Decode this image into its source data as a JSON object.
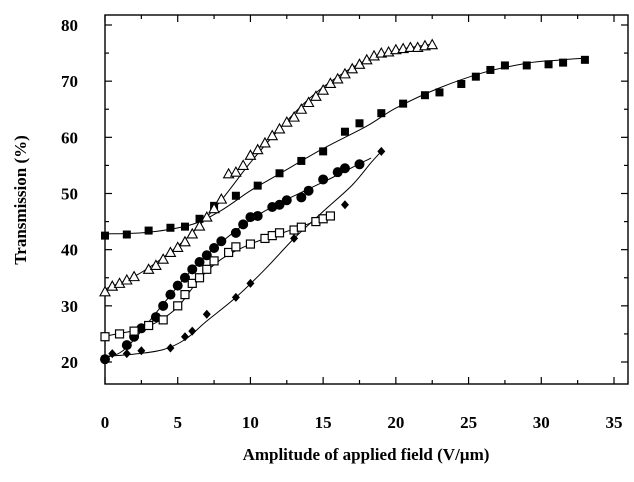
{
  "chart_data": {
    "type": "scatter",
    "title": "",
    "xlabel": "Amplitude of applied field (V/µm)",
    "ylabel": "Transmission (%)",
    "xlim": [
      0,
      35
    ],
    "ylim": [
      15,
      82
    ],
    "xticks": [
      "0",
      "5",
      "10",
      "15",
      "20",
      "25",
      "30",
      "35"
    ],
    "yticks": [
      "20",
      "30",
      "40",
      "50",
      "60",
      "70",
      "80"
    ],
    "grid": false,
    "legend": "none",
    "series": [
      {
        "marker": "filled-square",
        "color": "#000000",
        "points": [
          [
            0.0,
            42.5
          ],
          [
            1.5,
            42.7
          ],
          [
            3.0,
            43.4
          ],
          [
            4.5,
            43.9
          ],
          [
            5.5,
            44.1
          ],
          [
            6.5,
            45.5
          ],
          [
            7.5,
            47.8
          ],
          [
            9.0,
            49.6
          ],
          [
            10.5,
            51.4
          ],
          [
            12.0,
            53.6
          ],
          [
            13.5,
            55.8
          ],
          [
            15.0,
            57.5
          ],
          [
            16.5,
            61.0
          ],
          [
            17.5,
            62.5
          ],
          [
            19.0,
            64.3
          ],
          [
            20.5,
            66.0
          ],
          [
            22.0,
            67.5
          ],
          [
            23.0,
            68.0
          ],
          [
            24.5,
            69.5
          ],
          [
            25.5,
            70.8
          ],
          [
            26.5,
            72.0
          ],
          [
            27.5,
            72.8
          ],
          [
            29.0,
            72.8
          ],
          [
            30.5,
            73.0
          ],
          [
            31.5,
            73.3
          ],
          [
            33.0,
            73.8
          ]
        ],
        "fit": [
          [
            0,
            42.8
          ],
          [
            3,
            43.1
          ],
          [
            6,
            44.5
          ],
          [
            8,
            47
          ],
          [
            10,
            50.5
          ],
          [
            12,
            53.5
          ],
          [
            15,
            58
          ],
          [
            18,
            62
          ],
          [
            20,
            65.2
          ],
          [
            23,
            68.8
          ],
          [
            26,
            71.5
          ],
          [
            29,
            73.2
          ],
          [
            31,
            73.7
          ],
          [
            33,
            74.1
          ]
        ]
      },
      {
        "marker": "open-triangle",
        "color": "#000000",
        "points": [
          [
            0.0,
            32.5
          ],
          [
            0.5,
            33.5
          ],
          [
            1.0,
            34.0
          ],
          [
            1.5,
            34.6
          ],
          [
            2.0,
            35.2
          ],
          [
            3.0,
            36.5
          ],
          [
            3.5,
            37.2
          ],
          [
            4.0,
            38.3
          ],
          [
            4.5,
            39.5
          ],
          [
            5.0,
            40.4
          ],
          [
            5.5,
            41.4
          ],
          [
            6.0,
            42.8
          ],
          [
            6.5,
            44.2
          ],
          [
            7.0,
            45.8
          ],
          [
            7.5,
            47.3
          ],
          [
            8.0,
            49.0
          ],
          [
            8.5,
            53.5
          ],
          [
            9.0,
            53.8
          ],
          [
            9.5,
            55.0
          ],
          [
            10.0,
            56.8
          ],
          [
            10.5,
            57.8
          ],
          [
            11.0,
            59.0
          ],
          [
            11.5,
            60.3
          ],
          [
            12.0,
            61.5
          ],
          [
            12.5,
            62.7
          ],
          [
            13.0,
            63.6
          ],
          [
            13.5,
            65.0
          ],
          [
            14.0,
            66.2
          ],
          [
            14.5,
            67.3
          ],
          [
            15.0,
            68.4
          ],
          [
            15.5,
            69.6
          ],
          [
            16.0,
            70.4
          ],
          [
            16.5,
            71.3
          ],
          [
            17.0,
            72.2
          ],
          [
            17.5,
            73.0
          ],
          [
            18.0,
            73.8
          ],
          [
            18.5,
            74.5
          ],
          [
            19.0,
            75.0
          ],
          [
            19.5,
            75.2
          ],
          [
            20.0,
            75.6
          ],
          [
            20.5,
            75.8
          ],
          [
            21.0,
            76.0
          ],
          [
            21.5,
            76.0
          ],
          [
            22.0,
            76.3
          ],
          [
            22.5,
            76.5
          ]
        ],
        "fit": [
          [
            0,
            33
          ],
          [
            2,
            35.2
          ],
          [
            4,
            38.6
          ],
          [
            6,
            43
          ],
          [
            8,
            48.8
          ],
          [
            10,
            55.5
          ],
          [
            12,
            61.5
          ],
          [
            14,
            66.8
          ],
          [
            16,
            70.8
          ],
          [
            18,
            73.8
          ],
          [
            20,
            75.5
          ],
          [
            22.5,
            76.6
          ]
        ]
      },
      {
        "marker": "filled-circle",
        "color": "#000000",
        "points": [
          [
            0.0,
            20.5
          ],
          [
            1.5,
            23.0
          ],
          [
            2.0,
            24.5
          ],
          [
            2.5,
            26.0
          ],
          [
            3.5,
            28.0
          ],
          [
            4.0,
            30.0
          ],
          [
            4.5,
            32.0
          ],
          [
            5.0,
            33.6
          ],
          [
            5.5,
            35.0
          ],
          [
            6.0,
            36.5
          ],
          [
            6.5,
            37.8
          ],
          [
            7.0,
            39.0
          ],
          [
            7.5,
            40.3
          ],
          [
            8.0,
            41.5
          ],
          [
            9.0,
            43.0
          ],
          [
            9.5,
            44.5
          ],
          [
            10.0,
            45.8
          ],
          [
            10.5,
            46.0
          ],
          [
            11.5,
            47.6
          ],
          [
            12.0,
            48.0
          ],
          [
            12.5,
            48.8
          ],
          [
            13.5,
            49.3
          ],
          [
            14.0,
            50.5
          ],
          [
            15.0,
            52.5
          ],
          [
            16.0,
            53.8
          ],
          [
            16.5,
            54.5
          ],
          [
            17.5,
            55.2
          ]
        ],
        "fit": [
          [
            0,
            20.8
          ],
          [
            1,
            21.6
          ],
          [
            2,
            24
          ],
          [
            4,
            30.3
          ],
          [
            6,
            36.5
          ],
          [
            8,
            41.3
          ],
          [
            10,
            45.3
          ],
          [
            12,
            48.3
          ],
          [
            14,
            50.8
          ],
          [
            16,
            53.3
          ],
          [
            17.5,
            55.3
          ],
          [
            18.3,
            56.3
          ]
        ]
      },
      {
        "marker": "open-square",
        "color": "#000000",
        "points": [
          [
            0.0,
            24.5
          ],
          [
            1.0,
            25.0
          ],
          [
            2.0,
            25.5
          ],
          [
            3.0,
            26.5
          ],
          [
            4.0,
            27.5
          ],
          [
            5.0,
            30.0
          ],
          [
            5.5,
            32.0
          ],
          [
            6.0,
            34.0
          ],
          [
            6.5,
            35.0
          ],
          [
            7.0,
            36.5
          ],
          [
            7.5,
            38.0
          ],
          [
            8.5,
            39.5
          ],
          [
            9.0,
            40.5
          ],
          [
            10.0,
            41.0
          ],
          [
            11.0,
            42.0
          ],
          [
            11.5,
            42.5
          ],
          [
            12.0,
            43.0
          ],
          [
            13.0,
            43.5
          ],
          [
            13.5,
            44.0
          ],
          [
            14.5,
            45.0
          ],
          [
            15.0,
            45.5
          ],
          [
            15.5,
            46.0
          ]
        ],
        "fit": [
          [
            0,
            24.6
          ],
          [
            2,
            25.6
          ],
          [
            3.5,
            27
          ],
          [
            5,
            29.8
          ],
          [
            6.5,
            34.8
          ],
          [
            8,
            38.3
          ],
          [
            10,
            41
          ],
          [
            12,
            42.8
          ],
          [
            14,
            44.6
          ],
          [
            15.5,
            46
          ]
        ]
      },
      {
        "marker": "filled-diamond",
        "color": "#000000",
        "points": [
          [
            0.5,
            21.5
          ],
          [
            1.5,
            21.5
          ],
          [
            2.5,
            22.0
          ],
          [
            4.5,
            22.5
          ],
          [
            5.5,
            24.5
          ],
          [
            6.0,
            25.5
          ],
          [
            7.0,
            28.5
          ],
          [
            9.0,
            31.5
          ],
          [
            10.0,
            34.0
          ],
          [
            13.0,
            42.0
          ],
          [
            16.5,
            48.0
          ],
          [
            19.0,
            57.5
          ]
        ],
        "fit": [
          [
            0,
            21
          ],
          [
            2,
            21.4
          ],
          [
            4,
            22.2
          ],
          [
            5.5,
            24
          ],
          [
            7,
            27.3
          ],
          [
            9,
            31.5
          ],
          [
            11,
            36.5
          ],
          [
            13,
            42
          ],
          [
            15,
            46.8
          ],
          [
            17,
            51.5
          ],
          [
            18.3,
            55.5
          ],
          [
            19,
            57.5
          ]
        ]
      }
    ]
  }
}
